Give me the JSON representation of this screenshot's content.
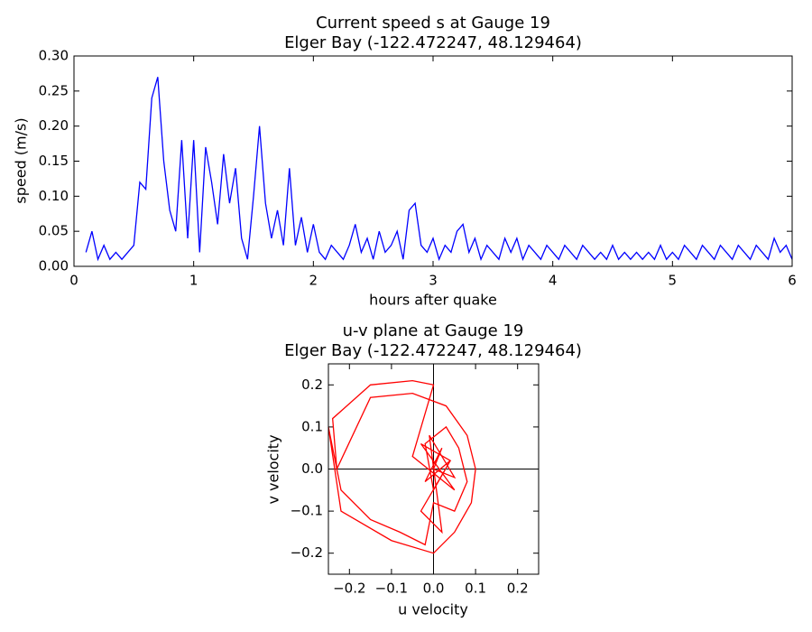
{
  "chart_data": [
    {
      "type": "line",
      "title": "Current speed s at Gauge 19",
      "subtitle": "Elger Bay  (-122.472247, 48.129464)",
      "x_label": "hours after quake",
      "y_label": "speed (m/s)",
      "xlim": [
        0,
        6
      ],
      "ylim": [
        0,
        0.3
      ],
      "xticks": [
        0,
        1,
        2,
        3,
        4,
        5,
        6
      ],
      "yticks": [
        {
          "value": 0,
          "label": "0.00"
        },
        {
          "value": 0.05,
          "label": "0.05"
        },
        {
          "value": 0.1,
          "label": "0.10"
        },
        {
          "value": 0.15,
          "label": "0.15"
        },
        {
          "value": 0.2,
          "label": "0.20"
        },
        {
          "value": 0.25,
          "label": "0.25"
        },
        {
          "value": 0.3,
          "label": "0.30"
        }
      ],
      "x": [
        0.1,
        0.15,
        0.2,
        0.25,
        0.3,
        0.35,
        0.4,
        0.45,
        0.5,
        0.55,
        0.6,
        0.65,
        0.7,
        0.75,
        0.8,
        0.85,
        0.9,
        0.95,
        1.0,
        1.05,
        1.1,
        1.15,
        1.2,
        1.25,
        1.3,
        1.35,
        1.4,
        1.45,
        1.5,
        1.55,
        1.6,
        1.65,
        1.7,
        1.75,
        1.8,
        1.85,
        1.9,
        1.95,
        2.0,
        2.05,
        2.1,
        2.15,
        2.2,
        2.25,
        2.3,
        2.35,
        2.4,
        2.45,
        2.5,
        2.55,
        2.6,
        2.65,
        2.7,
        2.75,
        2.8,
        2.85,
        2.9,
        2.95,
        3.0,
        3.05,
        3.1,
        3.15,
        3.2,
        3.25,
        3.3,
        3.35,
        3.4,
        3.45,
        3.5,
        3.55,
        3.6,
        3.65,
        3.7,
        3.75,
        3.8,
        3.85,
        3.9,
        3.95,
        4.0,
        4.05,
        4.1,
        4.15,
        4.2,
        4.25,
        4.3,
        4.35,
        4.4,
        4.45,
        4.5,
        4.55,
        4.6,
        4.65,
        4.7,
        4.75,
        4.8,
        4.85,
        4.9,
        4.95,
        5.0,
        5.05,
        5.1,
        5.15,
        5.2,
        5.25,
        5.3,
        5.35,
        5.4,
        5.45,
        5.5,
        5.55,
        5.6,
        5.65,
        5.7,
        5.75,
        5.8,
        5.85,
        5.9,
        5.95,
        6.0
      ],
      "series": [
        {
          "name": "speed",
          "color": "#0000ff",
          "values": [
            0.02,
            0.05,
            0.01,
            0.03,
            0.01,
            0.02,
            0.01,
            0.02,
            0.03,
            0.12,
            0.11,
            0.24,
            0.27,
            0.15,
            0.08,
            0.05,
            0.18,
            0.04,
            0.18,
            0.02,
            0.17,
            0.12,
            0.06,
            0.16,
            0.09,
            0.14,
            0.04,
            0.01,
            0.1,
            0.2,
            0.09,
            0.04,
            0.08,
            0.03,
            0.14,
            0.03,
            0.07,
            0.02,
            0.06,
            0.02,
            0.01,
            0.03,
            0.02,
            0.01,
            0.03,
            0.06,
            0.02,
            0.04,
            0.01,
            0.05,
            0.02,
            0.03,
            0.05,
            0.01,
            0.08,
            0.09,
            0.03,
            0.02,
            0.04,
            0.01,
            0.03,
            0.02,
            0.05,
            0.06,
            0.02,
            0.04,
            0.01,
            0.03,
            0.02,
            0.01,
            0.04,
            0.02,
            0.04,
            0.01,
            0.03,
            0.02,
            0.01,
            0.03,
            0.02,
            0.01,
            0.03,
            0.02,
            0.01,
            0.03,
            0.02,
            0.01,
            0.02,
            0.01,
            0.03,
            0.01,
            0.02,
            0.01,
            0.02,
            0.01,
            0.02,
            0.01,
            0.03,
            0.01,
            0.02,
            0.01,
            0.03,
            0.02,
            0.01,
            0.03,
            0.02,
            0.01,
            0.03,
            0.02,
            0.01,
            0.03,
            0.02,
            0.01,
            0.03,
            0.02,
            0.01,
            0.04,
            0.02,
            0.03,
            0.01
          ]
        }
      ]
    },
    {
      "type": "line",
      "title": "u-v plane at Gauge 19",
      "subtitle": "Elger Bay  (-122.472247, 48.129464)",
      "x_label": "u velocity",
      "y_label": "v velocity",
      "xlim": [
        -0.25,
        0.25
      ],
      "ylim": [
        -0.25,
        0.25
      ],
      "xticks": [
        {
          "value": -0.2,
          "label": "−0.2"
        },
        {
          "value": -0.1,
          "label": "−0.1"
        },
        {
          "value": 0,
          "label": "0.0"
        },
        {
          "value": 0.1,
          "label": "0.1"
        },
        {
          "value": 0.2,
          "label": "0.2"
        }
      ],
      "yticks": [
        {
          "value": -0.2,
          "label": "−0.2"
        },
        {
          "value": -0.1,
          "label": "−0.1"
        },
        {
          "value": 0,
          "label": "0.0"
        },
        {
          "value": 0.1,
          "label": "0.1"
        },
        {
          "value": 0.2,
          "label": "0.2"
        }
      ],
      "x": [
        0.0,
        0.02,
        -0.02,
        0.04,
        -0.03,
        0.05,
        -0.05,
        0.0,
        -0.05,
        -0.15,
        -0.24,
        -0.23,
        -0.15,
        -0.05,
        0.03,
        0.08,
        0.1,
        0.09,
        0.05,
        0.0,
        -0.1,
        -0.22,
        -0.25,
        -0.22,
        -0.15,
        -0.08,
        -0.02,
        0.0,
        0.05,
        0.08,
        0.06,
        0.03,
        -0.02,
        0.0,
        0.04,
        -0.03,
        0.02,
        -0.01,
        0.05,
        0.0
      ],
      "series": [
        {
          "name": "u-v",
          "color": "#ff0000",
          "values": [
            0.0,
            0.05,
            -0.03,
            0.02,
            0.06,
            -0.05,
            0.03,
            0.2,
            0.21,
            0.2,
            0.12,
            0.0,
            0.17,
            0.18,
            0.15,
            0.08,
            0.0,
            -0.08,
            -0.15,
            -0.2,
            -0.17,
            -0.1,
            0.1,
            -0.05,
            -0.12,
            -0.15,
            -0.18,
            -0.08,
            -0.1,
            -0.03,
            0.05,
            0.1,
            0.06,
            -0.05,
            0.02,
            -0.1,
            -0.15,
            0.08,
            -0.02,
            0.0
          ]
        }
      ]
    }
  ]
}
